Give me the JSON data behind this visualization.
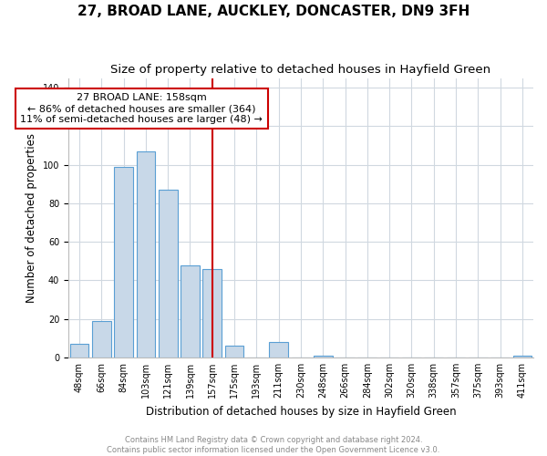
{
  "title": "27, BROAD LANE, AUCKLEY, DONCASTER, DN9 3FH",
  "subtitle": "Size of property relative to detached houses in Hayfield Green",
  "xlabel": "Distribution of detached houses by size in Hayfield Green",
  "ylabel": "Number of detached properties",
  "bar_labels": [
    "48sqm",
    "66sqm",
    "84sqm",
    "103sqm",
    "121sqm",
    "139sqm",
    "157sqm",
    "175sqm",
    "193sqm",
    "211sqm",
    "230sqm",
    "248sqm",
    "266sqm",
    "284sqm",
    "302sqm",
    "320sqm",
    "338sqm",
    "357sqm",
    "375sqm",
    "393sqm",
    "411sqm"
  ],
  "bar_values": [
    7,
    19,
    99,
    107,
    87,
    48,
    46,
    6,
    0,
    8,
    0,
    1,
    0,
    0,
    0,
    0,
    0,
    0,
    0,
    0,
    1
  ],
  "bar_color": "#c8d8e8",
  "bar_edge_color": "#5a9fd4",
  "vline_index": 6,
  "annotation_text_line1": "27 BROAD LANE: 158sqm",
  "annotation_text_line2": "← 86% of detached houses are smaller (364)",
  "annotation_text_line3": "11% of semi-detached houses are larger (48) →",
  "annotation_box_color": "#ffffff",
  "annotation_box_edge_color": "#cc0000",
  "vline_color": "#cc0000",
  "ylim": [
    0,
    145
  ],
  "footer_line1": "Contains HM Land Registry data © Crown copyright and database right 2024.",
  "footer_line2": "Contains public sector information licensed under the Open Government Licence v3.0.",
  "background_color": "#ffffff",
  "grid_color": "#d0d8e0",
  "title_fontsize": 11,
  "subtitle_fontsize": 9.5,
  "axis_label_fontsize": 8.5,
  "tick_fontsize": 7,
  "annotation_fontsize": 8,
  "footer_fontsize": 6
}
